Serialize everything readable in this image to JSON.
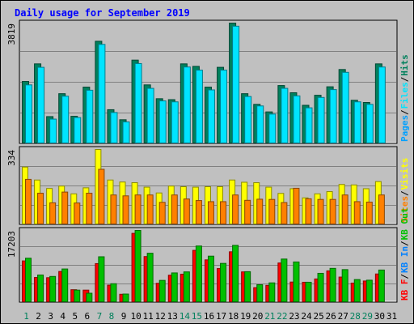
{
  "chart_data": [
    {
      "type": "bar",
      "title": "Daily usage for September 2019",
      "categories": [
        "1",
        "2",
        "3",
        "4",
        "5",
        "6",
        "7",
        "8",
        "9",
        "10",
        "11",
        "12",
        "13",
        "14",
        "15",
        "16",
        "17",
        "18",
        "19",
        "20",
        "21",
        "22",
        "23",
        "24",
        "25",
        "26",
        "27",
        "28",
        "29",
        "30",
        "31"
      ],
      "weekend_days": [
        "1",
        "7",
        "8",
        "14",
        "15",
        "21",
        "22",
        "28",
        "29"
      ],
      "ylabel_top": "3819",
      "ylim": [
        0,
        3819
      ],
      "right_labels": [
        "Pages",
        "Files",
        "Hits"
      ],
      "series": [
        {
          "name": "Hits",
          "color": "#00805c",
          "values": [
            1960,
            2520,
            840,
            1570,
            850,
            1780,
            3240,
            1060,
            740,
            2640,
            1850,
            1410,
            1380,
            2520,
            2440,
            1780,
            2410,
            3819,
            1570,
            1230,
            990,
            1830,
            1600,
            1200,
            1520,
            1790,
            2340,
            1360,
            1290,
            2520,
            0
          ]
        },
        {
          "name": "Files",
          "color": "#00e4ff",
          "values": [
            1850,
            2410,
            760,
            1490,
            810,
            1680,
            3140,
            970,
            670,
            2530,
            1740,
            1340,
            1310,
            2420,
            2320,
            1690,
            2320,
            3720,
            1480,
            1180,
            920,
            1740,
            1500,
            1120,
            1450,
            1700,
            2250,
            1310,
            1230,
            2420,
            0
          ]
        },
        {
          "name": "Pages",
          "color": "#00a0ff",
          "values": [
            0,
            0,
            0,
            0,
            0,
            0,
            0,
            0,
            0,
            0,
            0,
            0,
            0,
            0,
            0,
            0,
            0,
            0,
            0,
            0,
            0,
            0,
            0,
            0,
            0,
            0,
            0,
            0,
            0,
            0,
            0
          ]
        }
      ]
    },
    {
      "type": "bar",
      "ylabel_top": "334",
      "ylim": [
        0,
        334
      ],
      "right_labels": [
        "Sites",
        "Visits"
      ],
      "series": [
        {
          "name": "Visits",
          "color": "#ffff00",
          "values": [
            255,
            197,
            159,
            170,
            135,
            162,
            334,
            197,
            188,
            185,
            165,
            139,
            170,
            167,
            165,
            167,
            167,
            197,
            187,
            185,
            165,
            137,
            158,
            117,
            135,
            145,
            177,
            175,
            158,
            190,
            0
          ]
        },
        {
          "name": "Sites",
          "color": "#ff8000",
          "values": [
            200,
            138,
            95,
            143,
            94,
            138,
            245,
            130,
            126,
            130,
            130,
            97,
            130,
            112,
            105,
            100,
            100,
            130,
            106,
            111,
            110,
            96,
            160,
            113,
            110,
            110,
            130,
            100,
            98,
            130,
            0
          ]
        }
      ]
    },
    {
      "type": "bar",
      "ylabel_top": "17203",
      "ylim": [
        0,
        17203
      ],
      "right_labels": [
        "KB F",
        "KB In",
        "KB Out"
      ],
      "series": [
        {
          "name": "KB F",
          "color": "#ff0000",
          "values": [
            9850,
            5850,
            5800,
            7300,
            2900,
            2800,
            9200,
            4000,
            1800,
            16500,
            10900,
            4450,
            6400,
            6650,
            12400,
            10100,
            8000,
            12050,
            7200,
            3400,
            3950,
            9350,
            4750,
            4700,
            5500,
            7450,
            5950,
            4500,
            5000,
            6700,
            0
          ]
        },
        {
          "name": "KB In",
          "color": "#0080ff",
          "values": [
            0,
            0,
            0,
            0,
            0,
            0,
            0,
            0,
            0,
            0,
            0,
            0,
            0,
            0,
            0,
            0,
            0,
            0,
            0,
            0,
            0,
            0,
            0,
            0,
            0,
            0,
            0,
            0,
            0,
            0,
            0
          ]
        },
        {
          "name": "KB Out",
          "color": "#00c000",
          "values": [
            10500,
            6450,
            6100,
            7900,
            2800,
            2050,
            10850,
            4350,
            1850,
            17203,
            11700,
            5150,
            6950,
            7200,
            13450,
            11000,
            9250,
            13600,
            7250,
            4100,
            4550,
            10300,
            9600,
            4700,
            6850,
            8050,
            7750,
            5350,
            5200,
            7650,
            0
          ]
        }
      ]
    }
  ],
  "colors": {
    "background": "#c0c0c0",
    "title": "#0000ff",
    "grid": "#808080",
    "weekend_day": "#00805c",
    "weekday": "#000000"
  }
}
